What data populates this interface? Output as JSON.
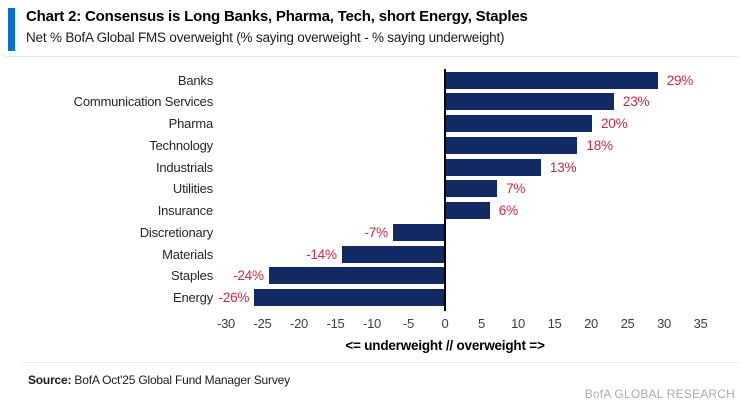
{
  "header": {
    "title": "Chart 2: Consensus is Long Banks, Pharma, Tech, short Energy, Staples",
    "subtitle": "Net % BofA Global FMS overweight (% saying overweight - % saying underweight)",
    "accent_color": "#0a6fd2"
  },
  "chart_data": {
    "type": "bar",
    "orientation": "horizontal",
    "title": "Net % BofA Global FMS overweight",
    "categories": [
      "Banks",
      "Communication Services",
      "Pharma",
      "Technology",
      "Industrials",
      "Utilities",
      "Insurance",
      "Discretionary",
      "Materials",
      "Staples",
      "Energy"
    ],
    "values": [
      29,
      23,
      20,
      18,
      13,
      7,
      6,
      -7,
      -14,
      -24,
      -26
    ],
    "value_labels": [
      "29%",
      "23%",
      "20%",
      "18%",
      "13%",
      "7%",
      "6%",
      "-7%",
      "-14%",
      "-24%",
      "-26%"
    ],
    "xlabel": "<= underweight // overweight =>",
    "x_ticks": [
      -30,
      -25,
      -20,
      -15,
      -10,
      -5,
      0,
      5,
      10,
      15,
      20,
      25,
      30,
      35
    ],
    "xlim": [
      -30,
      35
    ],
    "grid": false,
    "legend": "none",
    "bar_color": "#122a64",
    "value_label_color": "#cd2b3f"
  },
  "footer": {
    "source_label": "Source:",
    "source_text": " BofA Oct'25 Global Fund Manager Survey",
    "brand": "BofA GLOBAL RESEARCH"
  }
}
